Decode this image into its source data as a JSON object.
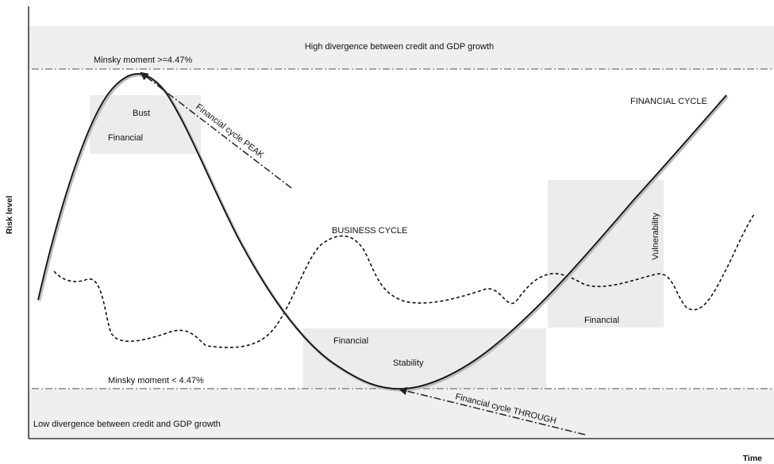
{
  "axes": {
    "y_label": "Risk level",
    "x_label": "Time"
  },
  "bands": {
    "high": "High divergence between credit and GDP growth",
    "low": "Low divergence between credit and GDP growth"
  },
  "thresholds": {
    "upper": "Minsky moment  >=4.47%",
    "lower": "Minsky moment  < 4.47%"
  },
  "zones": {
    "bust_top": "Bust",
    "bust_bottom": "Financial",
    "stability_top": "Financial",
    "stability_bottom": "Stability",
    "vulnerability_side": "Vulnerability",
    "vulnerability_bottom": "Financial"
  },
  "curves": {
    "financial": "FINANCIAL CYCLE",
    "business": "BUSINESS CYCLE"
  },
  "arrows": {
    "peak": "Financial cycle PEAK",
    "through": "Financial cycle THROUGH"
  },
  "colors": {
    "band_fill": "#efefef",
    "zone_fill": "#ececec",
    "curve": "#111111",
    "threshold_line": "#888888"
  }
}
